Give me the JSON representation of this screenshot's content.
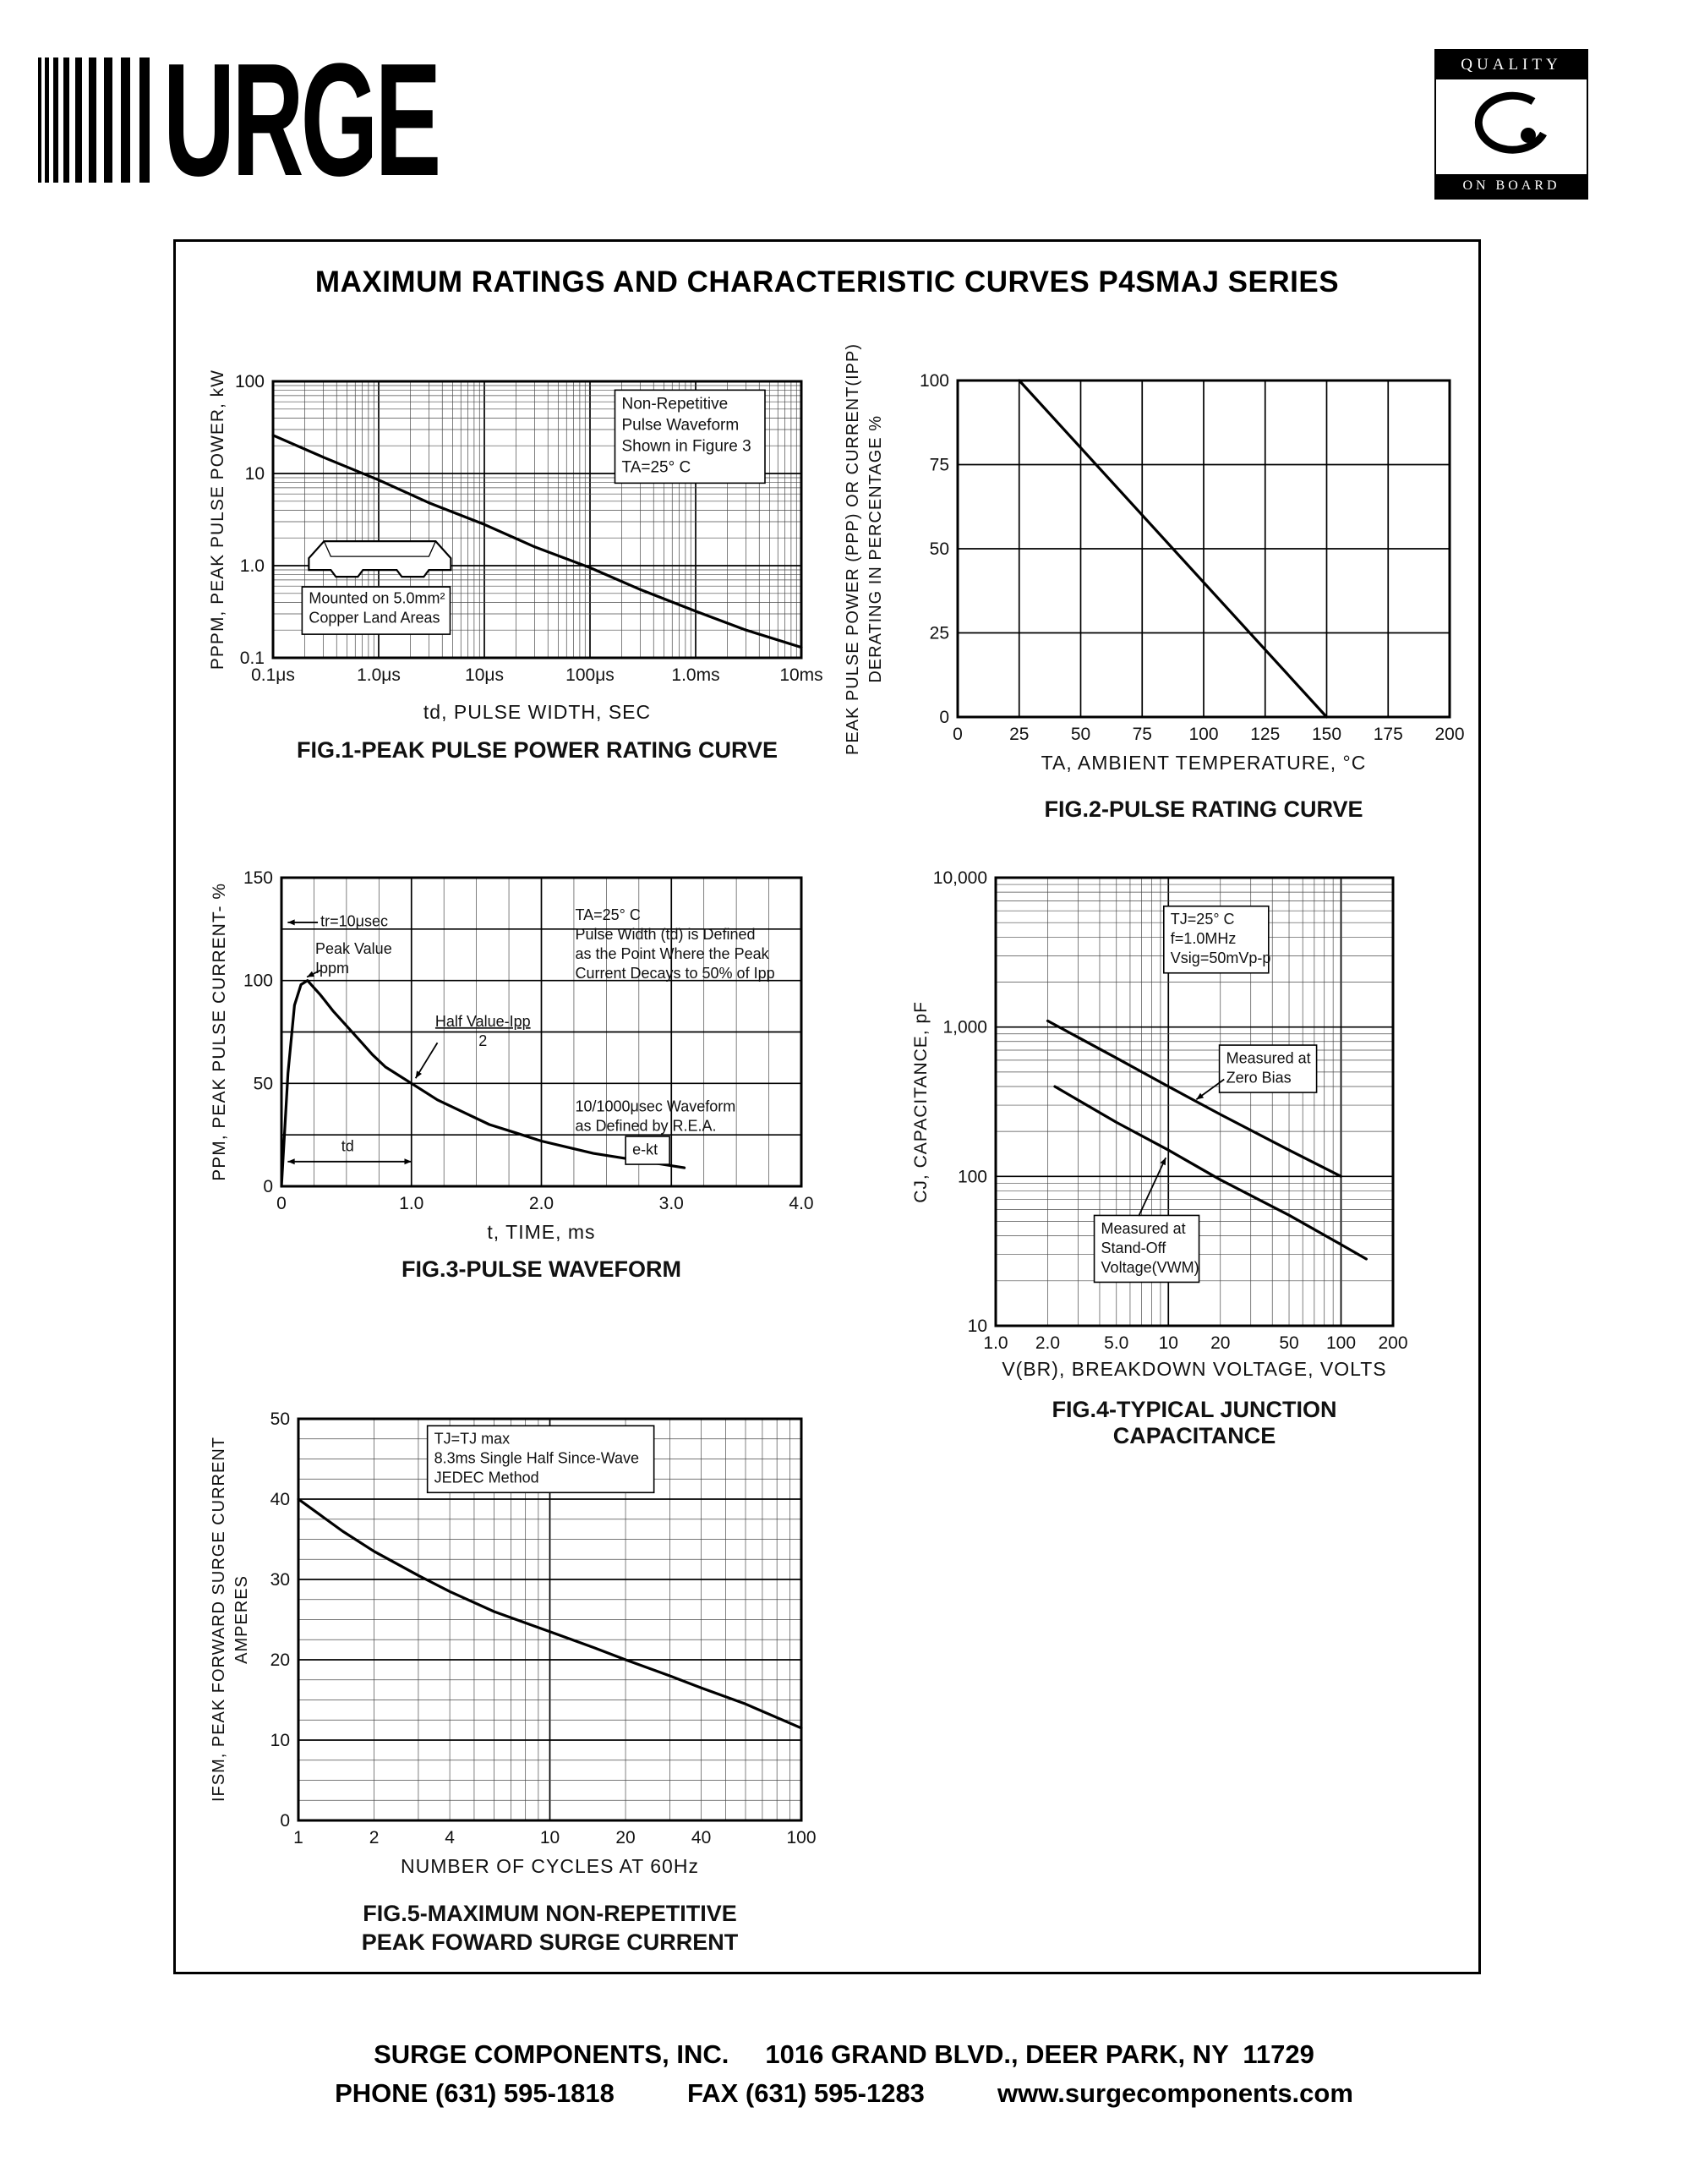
{
  "page": {
    "logo_text": "URGE",
    "quality_badge": {
      "top": "QUALITY",
      "bottom": "ON BOARD"
    },
    "title": "MAXIMUM RATINGS AND CHARACTERISTIC CURVES P4SMAJ SERIES",
    "footer": {
      "line1": "SURGE COMPONENTS, INC.     1016 GRAND BLVD., DEER PARK, NY  11729",
      "line2": "PHONE (631) 595-1818          FAX (631) 595-1283          www.surgecomponents.com"
    }
  },
  "chart_data": [
    {
      "id": "fig1",
      "type": "line",
      "title": "FIG.1-PEAK PULSE POWER RATING CURVE",
      "xlabel": "td, PULSE WIDTH, SEC",
      "ylabel": "PPPM, PEAK PULSE POWER, kW",
      "x_scale": "log",
      "y_scale": "log",
      "xlim": [
        1e-07,
        0.01
      ],
      "ylim": [
        0.1,
        100
      ],
      "grid": "on",
      "legend": "none",
      "x_ticks": [
        {
          "v": 1e-07,
          "label": "0.1μs"
        },
        {
          "v": 1e-06,
          "label": "1.0μs"
        },
        {
          "v": 1e-05,
          "label": "10μs"
        },
        {
          "v": 0.0001,
          "label": "100μs"
        },
        {
          "v": 0.001,
          "label": "1.0ms"
        },
        {
          "v": 0.01,
          "label": "10ms"
        }
      ],
      "y_ticks": [
        {
          "v": 100,
          "label": "100"
        },
        {
          "v": 10,
          "label": "10"
        },
        {
          "v": 1,
          "label": "1.0"
        },
        {
          "v": 0.1,
          "label": "0.1"
        }
      ],
      "series": [
        {
          "name": "peak-pulse-power-kw",
          "points": [
            [
              1e-07,
              26
            ],
            [
              3e-07,
              15
            ],
            [
              1e-06,
              8.5
            ],
            [
              3e-06,
              4.8
            ],
            [
              1e-05,
              2.8
            ],
            [
              3e-05,
              1.6
            ],
            [
              0.0001,
              0.95
            ],
            [
              0.0003,
              0.55
            ],
            [
              0.001,
              0.32
            ],
            [
              0.003,
              0.2
            ],
            [
              0.01,
              0.13
            ]
          ]
        }
      ],
      "annotations": [
        {
          "kind": "text",
          "fx": 0.66,
          "fy": 0.05,
          "box": true,
          "fs": 19,
          "lines": [
            "Non-Repetitive",
            "Pulse Waveform",
            "Shown in Figure 3",
            "TA=25° C"
          ]
        },
        {
          "kind": "package",
          "fx": 0.055,
          "fy": 0.56,
          "fs": 18,
          "lines": [
            "Mounted on 5.0mm²",
            "Copper Land Areas"
          ]
        }
      ]
    },
    {
      "id": "fig2",
      "type": "line",
      "title": "FIG.2-PULSE RATING CURVE",
      "xlabel": "TA, AMBIENT  TEMPERATURE, °C",
      "ylabel": "PEAK PULSE POWER (PPP) OR CURRENT(IPP)",
      "ylabel2": "DERATING IN PERCENTAGE %",
      "x_scale": "linear",
      "y_scale": "linear",
      "xlim": [
        0,
        200
      ],
      "ylim": [
        0,
        100
      ],
      "x_minor": 25,
      "y_minor": 25,
      "grid": "on",
      "legend": "none",
      "x_ticks": [
        {
          "v": 0,
          "label": "0"
        },
        {
          "v": 25,
          "label": "25"
        },
        {
          "v": 50,
          "label": "50"
        },
        {
          "v": 75,
          "label": "75"
        },
        {
          "v": 100,
          "label": "100"
        },
        {
          "v": 125,
          "label": "125"
        },
        {
          "v": 150,
          "label": "150"
        },
        {
          "v": 175,
          "label": "175"
        },
        {
          "v": 200,
          "label": "200"
        }
      ],
      "y_ticks": [
        {
          "v": 0,
          "label": "0"
        },
        {
          "v": 25,
          "label": "25"
        },
        {
          "v": 50,
          "label": "50"
        },
        {
          "v": 75,
          "label": "75"
        },
        {
          "v": 100,
          "label": "100"
        }
      ],
      "series": [
        {
          "name": "derating-line",
          "points": [
            [
              25,
              100
            ],
            [
              150,
              0
            ]
          ]
        }
      ],
      "annotations": []
    },
    {
      "id": "fig3",
      "type": "line",
      "title": "FIG.3-PULSE WAVEFORM",
      "xlabel": "t, TIME, ms",
      "ylabel": "PPM, PEAK PULSE CURRENT- %",
      "x_scale": "linear",
      "y_scale": "linear",
      "xlim": [
        0,
        4
      ],
      "ylim": [
        0,
        150
      ],
      "x_minor": 0.25,
      "x_major": 1,
      "y_minor": 25,
      "grid": "on",
      "legend": "none",
      "x_ticks": [
        {
          "v": 0,
          "label": "0"
        },
        {
          "v": 1,
          "label": "1.0"
        },
        {
          "v": 2,
          "label": "2.0"
        },
        {
          "v": 3,
          "label": "3.0"
        },
        {
          "v": 4,
          "label": "4.0"
        }
      ],
      "y_ticks": [
        {
          "v": 0,
          "label": "0"
        },
        {
          "v": 50,
          "label": "50"
        },
        {
          "v": 100,
          "label": "100"
        },
        {
          "v": 150,
          "label": "150"
        }
      ],
      "series": [
        {
          "name": "pulse-waveform",
          "points": [
            [
              0,
              0
            ],
            [
              0.05,
              55
            ],
            [
              0.1,
              88
            ],
            [
              0.15,
              98
            ],
            [
              0.2,
              100
            ],
            [
              0.3,
              93
            ],
            [
              0.4,
              85
            ],
            [
              0.5,
              78
            ],
            [
              0.6,
              71
            ],
            [
              0.7,
              64
            ],
            [
              0.8,
              58
            ],
            [
              0.9,
              54
            ],
            [
              1,
              50
            ],
            [
              1.2,
              42
            ],
            [
              1.4,
              36
            ],
            [
              1.6,
              30
            ],
            [
              1.8,
              26
            ],
            [
              2,
              22
            ],
            [
              2.2,
              19
            ],
            [
              2.4,
              16
            ],
            [
              2.6,
              14
            ],
            [
              2.8,
              12
            ],
            [
              3,
              10
            ],
            [
              3.1,
              9
            ]
          ]
        }
      ],
      "annotations": [
        {
          "kind": "text",
          "fx": 0.075,
          "fy": 0.115,
          "fs": 18,
          "lines": [
            "tr=10μsec"
          ]
        },
        {
          "kind": "arrow",
          "from": [
            0.07,
            0.145
          ],
          "to": [
            0.012,
            0.145
          ]
        },
        {
          "kind": "text",
          "fx": 0.065,
          "fy": 0.205,
          "fs": 18,
          "lines": [
            "Peak Value",
            "Ippm"
          ]
        },
        {
          "kind": "arrow",
          "from": [
            0.075,
            0.3
          ],
          "to": [
            0.049,
            0.322
          ]
        },
        {
          "kind": "text",
          "fx": 0.285,
          "fy": 0.44,
          "fs": 18,
          "frac": true,
          "lines": [
            "Half Value-Ipp",
            "2"
          ]
        },
        {
          "kind": "arrow",
          "from": [
            0.3,
            0.535
          ],
          "to": [
            0.258,
            0.65
          ]
        },
        {
          "kind": "text",
          "fx": 0.565,
          "fy": 0.095,
          "fs": 18,
          "lines": [
            "TA=25° C",
            "Pulse Width (td) is Defined",
            "as the Point Where the Peak",
            "Current Decays to 50% of Ipp"
          ]
        },
        {
          "kind": "text",
          "fx": 0.565,
          "fy": 0.715,
          "fs": 18,
          "lines": [
            "10/1000μsec Waveform",
            "as Defined by R.E.A."
          ]
        },
        {
          "kind": "line",
          "from": [
            0.25,
            0.667
          ],
          "to": [
            0.25,
            1.0
          ],
          "dash": true
        },
        {
          "kind": "arrow",
          "from": [
            0.012,
            0.92
          ],
          "to": [
            0.25,
            0.92
          ],
          "double": true
        },
        {
          "kind": "text",
          "fx": 0.115,
          "fy": 0.845,
          "fs": 18,
          "lines": [
            "td"
          ]
        },
        {
          "kind": "text",
          "fx": 0.675,
          "fy": 0.855,
          "fs": 18,
          "box": true,
          "lines": [
            "e-kt"
          ]
        }
      ]
    },
    {
      "id": "fig4",
      "type": "line",
      "title": "FIG.4-TYPICAL JUNCTION CAPACITANCE",
      "xlabel": "V(BR), BREAKDOWN VOLTAGE, VOLTS",
      "ylabel": "CJ, CAPACITANCE, pF",
      "x_scale": "log",
      "y_scale": "log",
      "xlim": [
        1,
        200
      ],
      "ylim": [
        10,
        10000
      ],
      "grid": "on",
      "legend": "none",
      "x_ticks": [
        {
          "v": 1,
          "label": "1.0"
        },
        {
          "v": 2,
          "label": "2.0"
        },
        {
          "v": 5,
          "label": "5.0"
        },
        {
          "v": 10,
          "label": "10"
        },
        {
          "v": 20,
          "label": "20"
        },
        {
          "v": 50,
          "label": "50"
        },
        {
          "v": 100,
          "label": "100"
        },
        {
          "v": 200,
          "label": "200"
        }
      ],
      "y_ticks": [
        {
          "v": 10000,
          "label": "10,000"
        },
        {
          "v": 1000,
          "label": "1,000"
        },
        {
          "v": 100,
          "label": "100"
        },
        {
          "v": 10,
          "label": "10"
        }
      ],
      "series": [
        {
          "name": "measured-at-zero-bias",
          "points": [
            [
              2,
              1100
            ],
            [
              5,
              620
            ],
            [
              10,
              400
            ],
            [
              20,
              260
            ],
            [
              50,
              150
            ],
            [
              100,
              100
            ]
          ]
        },
        {
          "name": "measured-at-stand-off-voltage",
          "points": [
            [
              2.2,
              400
            ],
            [
              5,
              230
            ],
            [
              10,
              150
            ],
            [
              20,
              95
            ],
            [
              50,
              55
            ],
            [
              100,
              35
            ],
            [
              140,
              28
            ]
          ]
        }
      ],
      "annotations": [
        {
          "kind": "text",
          "fx": 0.44,
          "fy": 0.075,
          "fs": 18,
          "box": true,
          "lines": [
            "TJ=25° C",
            "f=1.0MHz",
            "Vsig=50mVp-p"
          ]
        },
        {
          "kind": "text",
          "fx": 0.58,
          "fy": 0.385,
          "fs": 18,
          "box": true,
          "lines": [
            "Measured at",
            "Zero Bias"
          ]
        },
        {
          "kind": "arrow",
          "from": [
            0.575,
            0.45
          ],
          "to": [
            0.505,
            0.495
          ]
        },
        {
          "kind": "text",
          "fx": 0.265,
          "fy": 0.765,
          "fs": 18,
          "box": true,
          "lines": [
            "Measured at",
            "Stand-Off",
            "Voltage(VWM)"
          ]
        },
        {
          "kind": "arrow",
          "from": [
            0.36,
            0.755
          ],
          "to": [
            0.428,
            0.625
          ]
        }
      ]
    },
    {
      "id": "fig5",
      "type": "line",
      "title": "FIG.5-MAXIMUM NON-REPETITIVE",
      "title2": "PEAK FOWARD SURGE CURRENT",
      "xlabel": "NUMBER OF CYCLES AT 60Hz",
      "ylabel": "IFSM, PEAK FORWARD SURGE CURRENT",
      "ylabel2": "AMPERES",
      "x_scale": "log",
      "y_scale": "linear",
      "xlim": [
        1,
        100
      ],
      "ylim": [
        0,
        50
      ],
      "y_minor": 2.5,
      "y_major": 10,
      "grid": "on",
      "legend": "none",
      "x_ticks": [
        {
          "v": 1,
          "label": "1"
        },
        {
          "v": 2,
          "label": "2"
        },
        {
          "v": 4,
          "label": "4"
        },
        {
          "v": 10,
          "label": "10"
        },
        {
          "v": 20,
          "label": "20"
        },
        {
          "v": 40,
          "label": "40"
        },
        {
          "v": 100,
          "label": "100"
        }
      ],
      "y_ticks": [
        {
          "v": 0,
          "label": "0"
        },
        {
          "v": 10,
          "label": "10"
        },
        {
          "v": 20,
          "label": "20"
        },
        {
          "v": 30,
          "label": "30"
        },
        {
          "v": 40,
          "label": "40"
        },
        {
          "v": 50,
          "label": "50"
        }
      ],
      "series": [
        {
          "name": "peak-forward-surge-current",
          "points": [
            [
              1,
              40
            ],
            [
              1.5,
              36
            ],
            [
              2,
              33.5
            ],
            [
              3,
              30.5
            ],
            [
              4,
              28.5
            ],
            [
              6,
              26
            ],
            [
              10,
              23.5
            ],
            [
              15,
              21.5
            ],
            [
              20,
              20
            ],
            [
              30,
              18
            ],
            [
              40,
              16.5
            ],
            [
              60,
              14.5
            ],
            [
              100,
              11.5
            ]
          ]
        }
      ],
      "annotations": [
        {
          "kind": "text",
          "fx": 0.27,
          "fy": 0.03,
          "fs": 18,
          "box": true,
          "lines": [
            "TJ=TJ max",
            "8.3ms Single Half Since-Wave",
            "JEDEC Method"
          ]
        }
      ]
    }
  ]
}
